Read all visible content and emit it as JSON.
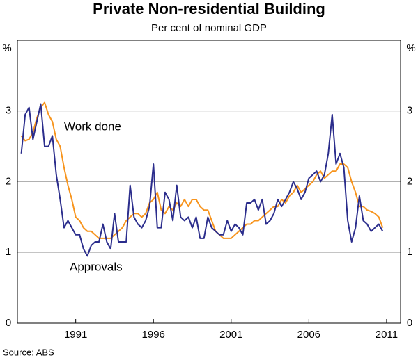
{
  "chart_data": {
    "type": "line",
    "title": "Private Non-residential Building",
    "subtitle": "Per cent of nominal GDP",
    "ylabel": "%",
    "y2label": "%",
    "source": "Source: ABS",
    "x": [
      1987.5,
      1987.75,
      1988,
      1988.25,
      1988.5,
      1988.75,
      1989,
      1989.25,
      1989.5,
      1989.75,
      1990,
      1990.25,
      1990.5,
      1990.75,
      1991,
      1991.25,
      1991.5,
      1991.75,
      1992,
      1992.25,
      1992.5,
      1992.75,
      1993,
      1993.25,
      1993.5,
      1993.75,
      1994,
      1994.25,
      1994.5,
      1994.75,
      1995,
      1995.25,
      1995.5,
      1995.75,
      1996,
      1996.25,
      1996.5,
      1996.75,
      1997,
      1997.25,
      1997.5,
      1997.75,
      1998,
      1998.25,
      1998.5,
      1998.75,
      1999,
      1999.25,
      1999.5,
      1999.75,
      2000,
      2000.25,
      2000.5,
      2000.75,
      2001,
      2001.25,
      2001.5,
      2001.75,
      2002,
      2002.25,
      2002.5,
      2002.75,
      2003,
      2003.25,
      2003.5,
      2003.75,
      2004,
      2004.25,
      2004.5,
      2004.75,
      2005,
      2005.25,
      2005.5,
      2005.75,
      2006,
      2006.25,
      2006.5,
      2006.75,
      2007,
      2007.25,
      2007.5,
      2007.75,
      2008,
      2008.25,
      2008.5,
      2008.75,
      2009,
      2009.25,
      2009.5,
      2009.75,
      2010,
      2010.25,
      2010.5,
      2010.75
    ],
    "series": [
      {
        "name": "Work done",
        "color": "#f7941d",
        "values": [
          2.65,
          2.58,
          2.6,
          2.7,
          2.9,
          3.05,
          3.12,
          2.95,
          2.85,
          2.6,
          2.5,
          2.2,
          1.95,
          1.75,
          1.5,
          1.45,
          1.35,
          1.3,
          1.3,
          1.25,
          1.2,
          1.2,
          1.2,
          1.2,
          1.25,
          1.3,
          1.35,
          1.45,
          1.5,
          1.55,
          1.55,
          1.5,
          1.55,
          1.7,
          1.75,
          1.85,
          1.6,
          1.55,
          1.65,
          1.6,
          1.7,
          1.65,
          1.75,
          1.65,
          1.75,
          1.75,
          1.65,
          1.6,
          1.6,
          1.45,
          1.3,
          1.25,
          1.2,
          1.2,
          1.2,
          1.25,
          1.3,
          1.35,
          1.4,
          1.4,
          1.45,
          1.45,
          1.5,
          1.55,
          1.6,
          1.65,
          1.65,
          1.75,
          1.7,
          1.8,
          1.85,
          1.95,
          1.85,
          1.9,
          1.95,
          2.0,
          2.1,
          2.15,
          2.05,
          2.1,
          2.15,
          2.15,
          2.25,
          2.25,
          2.2,
          2.0,
          1.85,
          1.65,
          1.65,
          1.6,
          1.58,
          1.55,
          1.5,
          1.35
        ]
      },
      {
        "name": "Approvals",
        "color": "#2b2d8c",
        "values": [
          2.4,
          2.95,
          3.05,
          2.6,
          2.85,
          3.1,
          2.5,
          2.5,
          2.65,
          2.1,
          1.75,
          1.35,
          1.45,
          1.35,
          1.25,
          1.25,
          1.05,
          0.95,
          1.1,
          1.15,
          1.15,
          1.4,
          1.15,
          1.05,
          1.55,
          1.15,
          1.15,
          1.15,
          1.95,
          1.5,
          1.4,
          1.35,
          1.45,
          1.65,
          2.25,
          1.35,
          1.35,
          1.85,
          1.75,
          1.45,
          1.95,
          1.5,
          1.45,
          1.5,
          1.35,
          1.5,
          1.2,
          1.2,
          1.5,
          1.35,
          1.3,
          1.25,
          1.25,
          1.45,
          1.3,
          1.4,
          1.35,
          1.25,
          1.7,
          1.7,
          1.75,
          1.6,
          1.75,
          1.4,
          1.45,
          1.55,
          1.75,
          1.65,
          1.75,
          1.85,
          2.0,
          1.9,
          1.75,
          1.85,
          2.05,
          2.1,
          2.15,
          2.0,
          2.1,
          2.4,
          2.95,
          2.25,
          2.4,
          2.2,
          1.45,
          1.15,
          1.35,
          1.8,
          1.45,
          1.4,
          1.3,
          1.35,
          1.4,
          1.3
        ]
      }
    ],
    "xlim": [
      1987.25,
      2011.9
    ],
    "xticks": [
      1991,
      1996,
      2001,
      2006,
      2011
    ],
    "ylim": [
      0,
      4
    ],
    "yticks": [
      0,
      1,
      2,
      3
    ],
    "y2lim": [
      0,
      4
    ],
    "y2ticks": [
      0,
      1,
      2,
      3
    ],
    "grid": true
  }
}
